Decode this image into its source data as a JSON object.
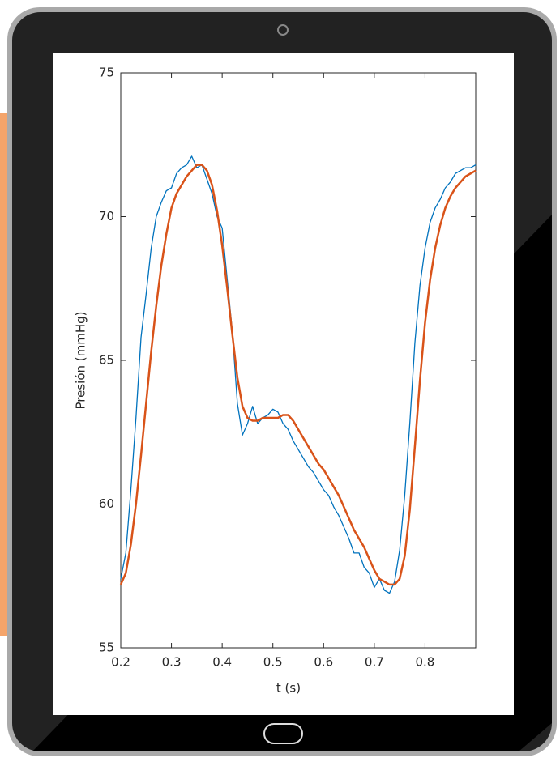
{
  "chart_data": {
    "type": "line",
    "xlabel": "t (s)",
    "ylabel": "Presión (mmHg)",
    "x": [
      0.2,
      0.21,
      0.22,
      0.23,
      0.24,
      0.25,
      0.26,
      0.27,
      0.28,
      0.29,
      0.3,
      0.31,
      0.32,
      0.33,
      0.34,
      0.35,
      0.36,
      0.37,
      0.38,
      0.39,
      0.4,
      0.41,
      0.42,
      0.43,
      0.44,
      0.45,
      0.46,
      0.47,
      0.48,
      0.49,
      0.5,
      0.51,
      0.52,
      0.53,
      0.54,
      0.55,
      0.56,
      0.57,
      0.58,
      0.59,
      0.6,
      0.61,
      0.62,
      0.63,
      0.64,
      0.65,
      0.66,
      0.67,
      0.68,
      0.69,
      0.7,
      0.71,
      0.72,
      0.73,
      0.74,
      0.75,
      0.76,
      0.77,
      0.78,
      0.79,
      0.8,
      0.81,
      0.82,
      0.83,
      0.84,
      0.85,
      0.86,
      0.87,
      0.88,
      0.89,
      0.9
    ],
    "series": [
      {
        "color": "#0072bd",
        "values": [
          57.4,
          58.3,
          60.5,
          63.0,
          65.8,
          67.3,
          68.9,
          70.0,
          70.5,
          70.9,
          71.0,
          71.5,
          71.7,
          71.8,
          72.1,
          71.7,
          71.8,
          71.3,
          70.8,
          70.0,
          69.6,
          67.8,
          66.0,
          63.5,
          62.4,
          62.8,
          63.4,
          62.8,
          63.0,
          63.1,
          63.3,
          63.2,
          62.8,
          62.6,
          62.2,
          61.9,
          61.6,
          61.3,
          61.1,
          60.8,
          60.5,
          60.3,
          59.9,
          59.6,
          59.2,
          58.8,
          58.3,
          58.3,
          57.8,
          57.6,
          57.1,
          57.4,
          57.0,
          56.9,
          57.3,
          58.4,
          60.3,
          62.8,
          65.6,
          67.6,
          68.9,
          69.8,
          70.3,
          70.6,
          71.0,
          71.2,
          71.5,
          71.6,
          71.7,
          71.7,
          71.8
        ]
      },
      {
        "color": "#d95319",
        "values": [
          57.2,
          57.6,
          58.6,
          60.0,
          61.7,
          63.5,
          65.3,
          66.9,
          68.3,
          69.4,
          70.3,
          70.8,
          71.1,
          71.4,
          71.6,
          71.8,
          71.8,
          71.6,
          71.1,
          70.2,
          69.0,
          67.5,
          65.9,
          64.4,
          63.4,
          63.0,
          62.9,
          62.9,
          63.0,
          63.0,
          63.0,
          63.0,
          63.1,
          63.1,
          62.9,
          62.6,
          62.3,
          62.0,
          61.7,
          61.4,
          61.2,
          60.9,
          60.6,
          60.3,
          59.9,
          59.5,
          59.1,
          58.8,
          58.5,
          58.1,
          57.7,
          57.4,
          57.3,
          57.2,
          57.2,
          57.4,
          58.2,
          59.8,
          62.0,
          64.3,
          66.3,
          67.8,
          68.9,
          69.7,
          70.3,
          70.7,
          71.0,
          71.2,
          71.4,
          71.5,
          71.6
        ]
      }
    ],
    "xlim": [
      0.2,
      0.9
    ],
    "xticks": [
      0.2,
      0.3,
      0.4,
      0.5,
      0.6,
      0.7,
      0.8
    ],
    "ylim": [
      55,
      75
    ],
    "yticks": [
      55,
      60,
      65,
      70,
      75
    ],
    "grid": false
  }
}
